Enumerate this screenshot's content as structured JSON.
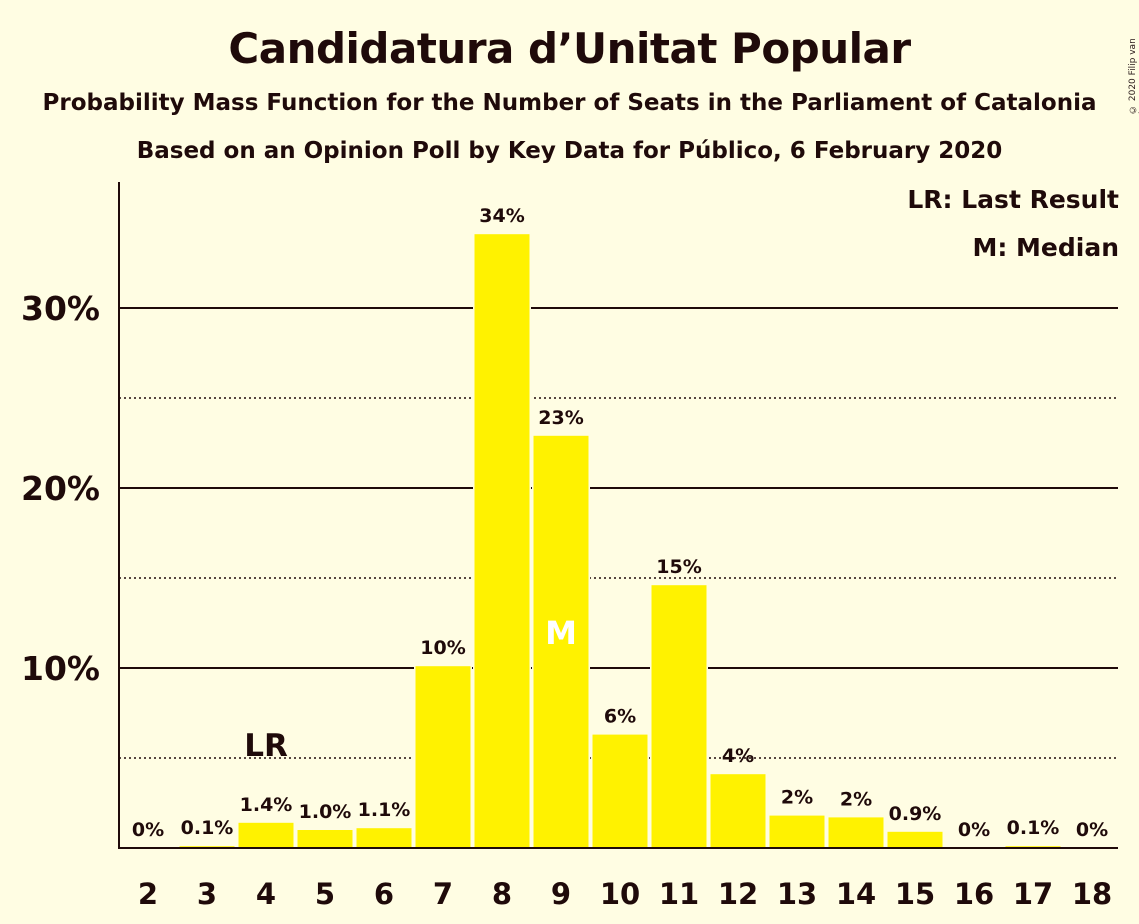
{
  "title": "Candidatura d’Unitat Popular",
  "subtitle1": "Probability Mass Function for the Number of Seats in the Parliament of Catalonia",
  "subtitle2": "Based on an Opinion Poll by Key Data for Público, 6 February 2020",
  "copyright": "© 2020 Filip van Laenen",
  "legend": {
    "last_result": "LR: Last Result",
    "median": "M: Median"
  },
  "colors": {
    "bar": "#FFF200",
    "background": "#FFFDE3",
    "text": "#1f0a0a"
  },
  "chart_data": {
    "type": "bar",
    "title": "Candidatura d’Unitat Popular",
    "xlabel": "",
    "ylabel": "",
    "categories": [
      "2",
      "3",
      "4",
      "5",
      "6",
      "7",
      "8",
      "9",
      "10",
      "11",
      "12",
      "13",
      "14",
      "15",
      "16",
      "17",
      "18"
    ],
    "values": [
      0,
      0.1,
      1.4,
      1.0,
      1.1,
      10.1,
      34.1,
      22.9,
      6.3,
      14.6,
      4.1,
      1.8,
      1.7,
      0.9,
      0,
      0.1,
      0
    ],
    "data_labels": [
      "0%",
      "0.1%",
      "1.4%",
      "1.0%",
      "1.1%",
      "10%",
      "34%",
      "23%",
      "6%",
      "15%",
      "4%",
      "2%",
      "2%",
      "0.9%",
      "0%",
      "0.1%",
      "0%"
    ],
    "ylim": [
      0,
      37
    ],
    "y_ticks": [
      {
        "value": 10,
        "label": "10%"
      },
      {
        "value": 20,
        "label": "20%"
      },
      {
        "value": 30,
        "label": "30%"
      }
    ],
    "minor_gridlines": [
      5,
      15,
      25
    ],
    "last_result": {
      "category": "4",
      "label": "LR",
      "line_value": 5
    },
    "median": {
      "category": "9",
      "label": "M"
    },
    "grid": true,
    "legend_position": "top-right"
  }
}
